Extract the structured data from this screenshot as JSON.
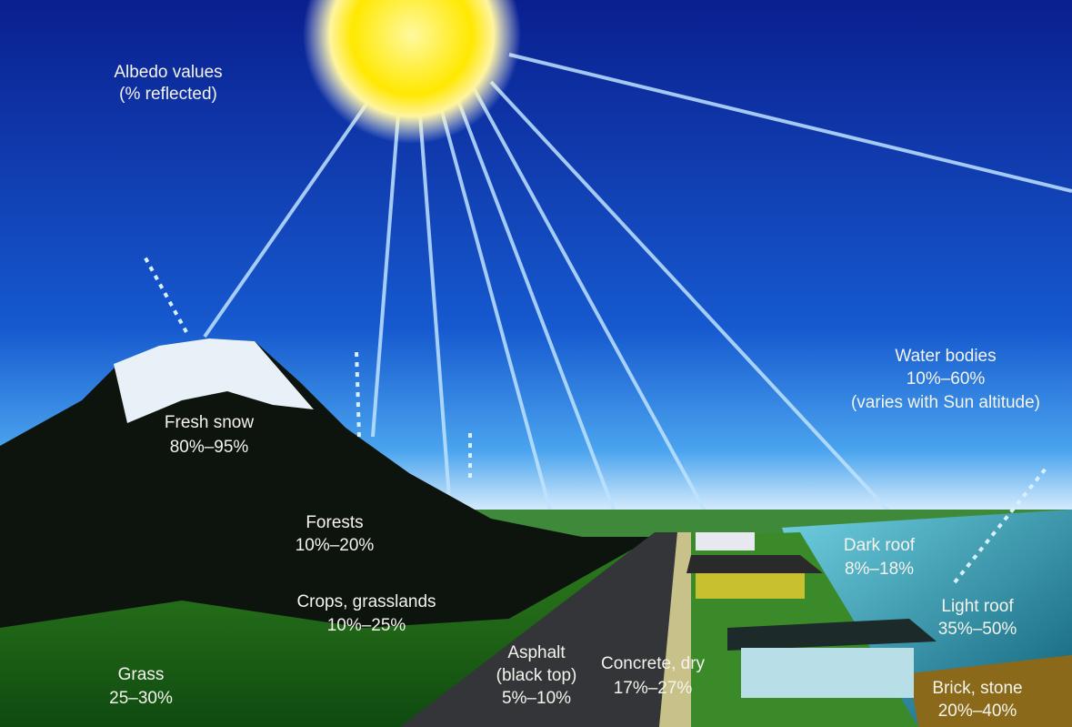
{
  "title": {
    "lines": [
      "Albedo values",
      "(% reflected)"
    ]
  },
  "surfaces": [
    {
      "name": "Fresh snow",
      "albedo": "80%–95%"
    },
    {
      "name": "Forests",
      "albedo": "10%–20%"
    },
    {
      "name": "Crops, grasslands",
      "albedo": "10%–25%"
    },
    {
      "name": "Grass",
      "albedo": "25–30%"
    },
    {
      "name": "Asphalt",
      "note": "(black top)",
      "albedo": "5%–10%"
    },
    {
      "name": "Concrete, dry",
      "albedo": "17%–27%"
    },
    {
      "name": "Dark roof",
      "albedo": "8%–18%"
    },
    {
      "name": "Light roof",
      "albedo": "35%–50%"
    },
    {
      "name": "Brick, stone",
      "albedo": "20%–40%"
    },
    {
      "name": "Water bodies",
      "albedo": "10%–60%",
      "note": "(varies with Sun altitude)"
    }
  ]
}
